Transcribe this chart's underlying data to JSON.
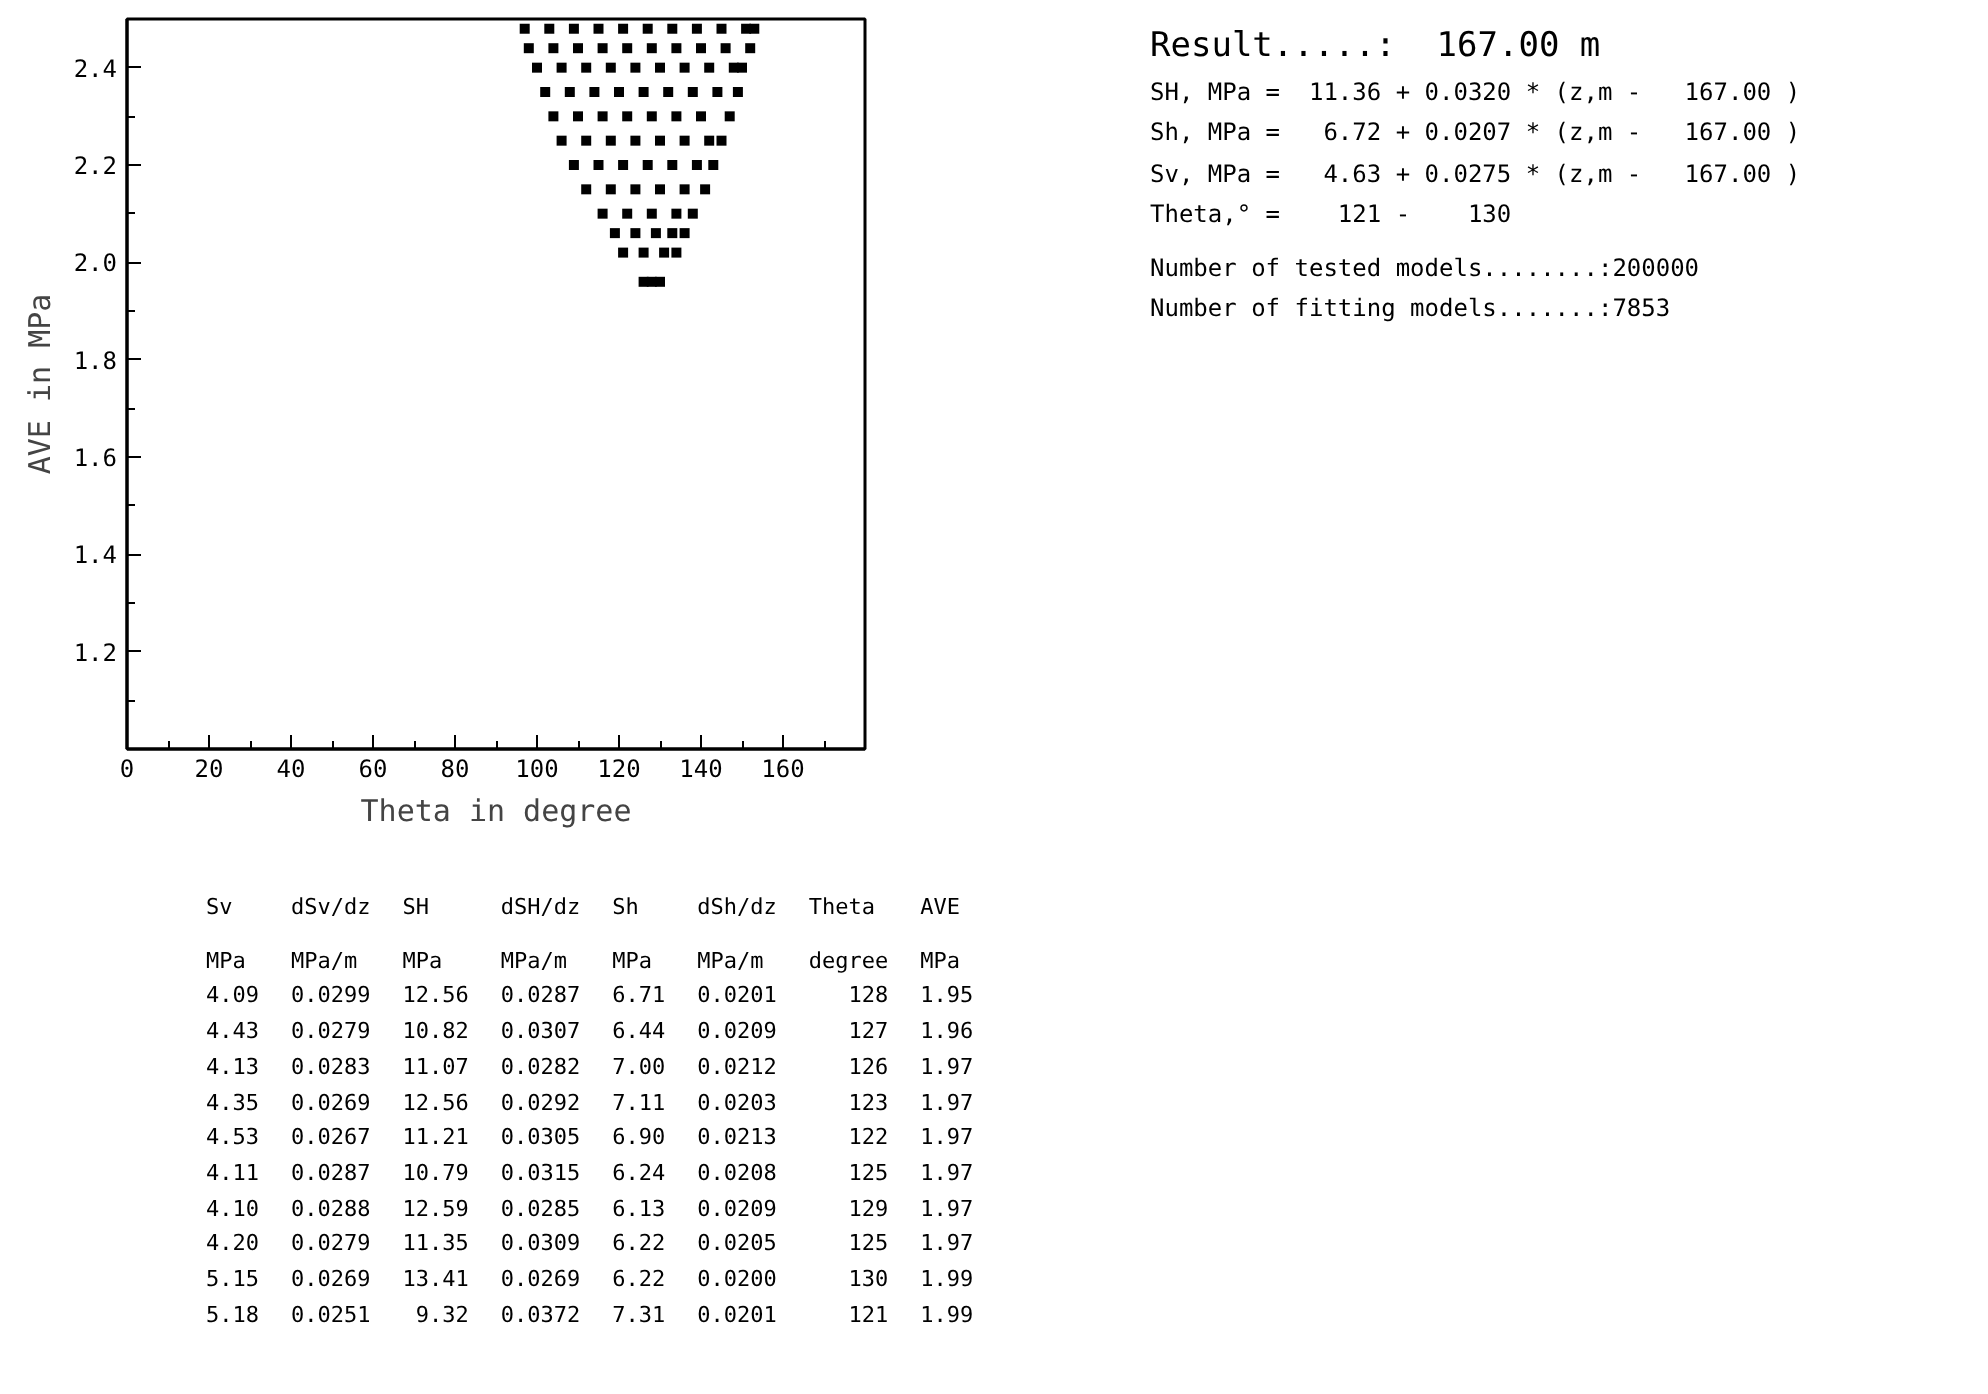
{
  "chart_data": {
    "type": "scatter",
    "xlabel": "Theta in degree",
    "ylabel": "AVE in MPa",
    "xlim": [
      0,
      180
    ],
    "ylim": [
      1.0,
      2.5
    ],
    "xticks": [
      0,
      20,
      40,
      60,
      80,
      100,
      120,
      140,
      160,
      {
        "value": 180,
        "label": null
      }
    ],
    "yticks": [
      {
        "value": 1.0,
        "label": null
      },
      1.2,
      1.4,
      1.6,
      1.8,
      {
        "value": 2.0,
        "label": "2.0"
      },
      2.2,
      2.4
    ],
    "grid": false,
    "marker": "square",
    "series": [
      {
        "color": "#000000",
        "x": [
          97,
          103,
          109,
          115,
          121,
          127,
          133,
          139,
          145,
          151,
          153,
          98,
          104,
          110,
          116,
          122,
          128,
          134,
          140,
          146,
          152,
          100,
          106,
          112,
          118,
          124,
          130,
          136,
          142,
          148,
          150,
          102,
          108,
          114,
          120,
          126,
          132,
          138,
          144,
          149,
          104,
          110,
          116,
          122,
          128,
          134,
          140,
          147,
          106,
          112,
          118,
          124,
          130,
          136,
          142,
          145,
          109,
          115,
          121,
          127,
          133,
          139,
          143,
          112,
          118,
          124,
          130,
          136,
          141,
          116,
          122,
          128,
          134,
          138,
          119,
          124,
          129,
          133,
          136,
          121,
          126,
          131,
          134,
          126,
          128,
          130
        ],
        "values": [
          2.48,
          2.48,
          2.48,
          2.48,
          2.48,
          2.48,
          2.48,
          2.48,
          2.48,
          2.48,
          2.48,
          2.44,
          2.44,
          2.44,
          2.44,
          2.44,
          2.44,
          2.44,
          2.44,
          2.44,
          2.44,
          2.4,
          2.4,
          2.4,
          2.4,
          2.4,
          2.4,
          2.4,
          2.4,
          2.4,
          2.4,
          2.35,
          2.35,
          2.35,
          2.35,
          2.35,
          2.35,
          2.35,
          2.35,
          2.35,
          2.3,
          2.3,
          2.3,
          2.3,
          2.3,
          2.3,
          2.3,
          2.3,
          2.25,
          2.25,
          2.25,
          2.25,
          2.25,
          2.25,
          2.25,
          2.25,
          2.2,
          2.2,
          2.2,
          2.2,
          2.2,
          2.2,
          2.2,
          2.15,
          2.15,
          2.15,
          2.15,
          2.15,
          2.15,
          2.1,
          2.1,
          2.1,
          2.1,
          2.1,
          2.06,
          2.06,
          2.06,
          2.06,
          2.06,
          2.02,
          2.02,
          2.02,
          2.02,
          1.96,
          1.96,
          1.96
        ]
      }
    ],
    "annotations": [
      "Result.....:  167.00 m",
      "SH, MPa =  11.36 + 0.0320 * (z,m -   167.00 )",
      "Sh, MPa =   6.72 + 0.0207 * (z,m -   167.00 )",
      "Sv, MPa =   4.63 + 0.0275 * (z,m -   167.00 )",
      "Theta,° =    121 -    130",
      "Number of tested models........:200000",
      "Number of fitting models.......:7853",
      "Sv",
      "dSv/dz",
      "SH",
      "dSH/dz",
      "Sh",
      "dSh/dz",
      "Theta",
      "AVE",
      "MPa",
      "MPa/m",
      "MPa",
      "MPa/m",
      "MPa",
      "MPa/m",
      "degree",
      "MPa",
      "4.09",
      "0.0299",
      "12.56",
      "0.0287",
      "6.71",
      "0.0201",
      "128",
      "1.95",
      "4.43",
      "0.0279",
      "10.82",
      "0.0307",
      "6.44",
      "0.0209",
      "127",
      "1.96",
      "4.13",
      "0.0283",
      "11.07",
      "0.0282",
      "7.00",
      "0.0212",
      "126",
      "1.97",
      "4.35",
      "0.0269",
      "12.56",
      "0.0292",
      "7.11",
      "0.0203",
      "123",
      "1.97",
      "4.53",
      "0.0267",
      "11.21",
      "0.0305",
      "6.90",
      "0.0213",
      "122",
      "1.97",
      "4.11",
      "0.0287",
      "10.79",
      "0.0315",
      "6.24",
      "0.0208",
      "125",
      "1.97",
      "4.10",
      "0.0288",
      "12.59",
      "0.0285",
      "6.13",
      "0.0209",
      "129",
      "1.97",
      "4.20",
      "0.0279",
      "11.35",
      "0.0309",
      "6.22",
      "0.0205",
      "125",
      "1.97",
      "5.15",
      "0.0269",
      "13.41",
      "0.0269",
      "6.22",
      "0.0200",
      "130",
      "1.99",
      "5.18",
      "0.0251",
      "9.32",
      "0.0372",
      "7.31",
      "0.0201",
      "121",
      "1.99"
    ]
  }
}
